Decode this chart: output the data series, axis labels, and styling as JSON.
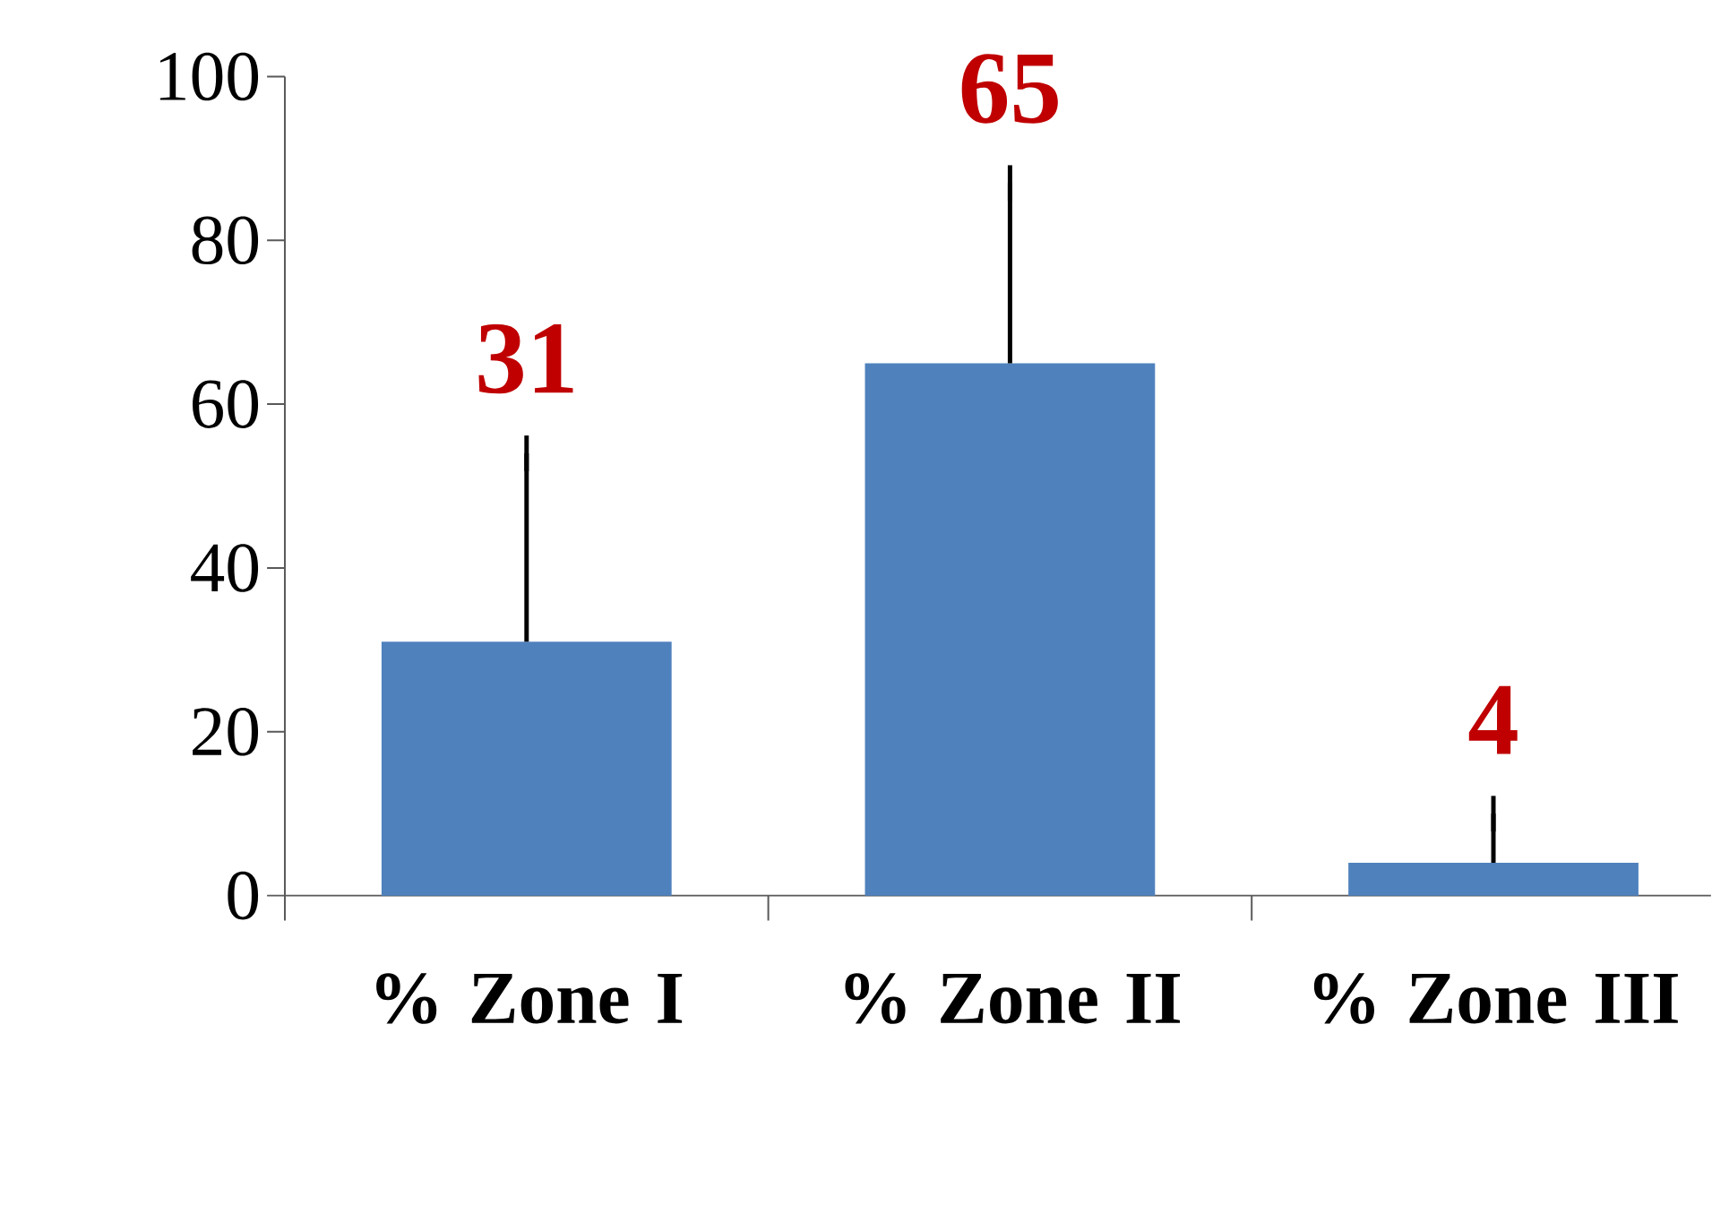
{
  "chart_data": {
    "type": "bar",
    "categories": [
      "% Zone I",
      "% Zone II",
      "% Zone III"
    ],
    "values": [
      31,
      65,
      4
    ],
    "errors": [
      [
        31,
        54
      ],
      [
        65,
        87
      ],
      [
        4,
        10
      ]
    ],
    "color": "#4f81bd",
    "data_labels": true,
    "ylim": [
      0,
      100
    ],
    "yticks": [
      0,
      20,
      40,
      60,
      80,
      100
    ]
  }
}
